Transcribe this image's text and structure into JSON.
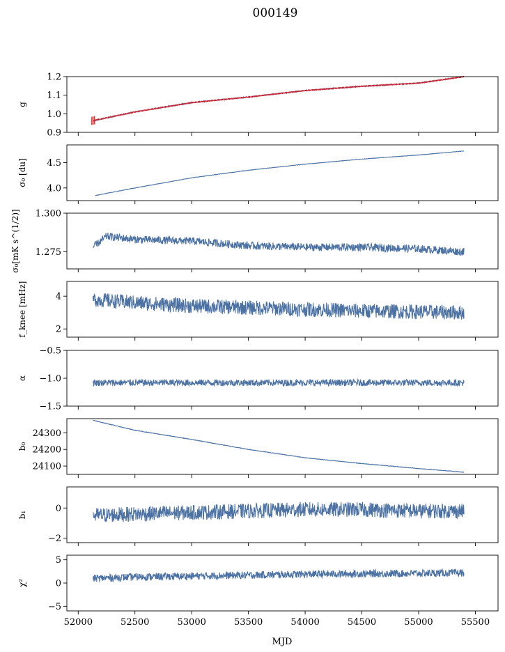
{
  "title": "000149",
  "xlabel": "MJD",
  "x_ticks": [
    "52000",
    "52500",
    "53000",
    "53500",
    "54000",
    "54500",
    "55000",
    "55500"
  ],
  "colors": {
    "series": "#4c72a4",
    "highlight": "#ff0000"
  },
  "chart_data": [
    {
      "type": "line",
      "ylabel": "g",
      "ylim": [
        0.9,
        1.2
      ],
      "yticks": [
        {
          "value": 0.9,
          "label": "0.9"
        },
        {
          "value": 1.0,
          "label": "1.0"
        },
        {
          "value": 1.1,
          "label": "1.1"
        },
        {
          "value": 1.2,
          "label": "1.2"
        }
      ],
      "series": [
        {
          "x": [
            52130,
            52500,
            53000,
            53500,
            54000,
            54500,
            55000,
            55400
          ],
          "y": [
            0.962,
            1.01,
            1.06,
            1.09,
            1.125,
            1.148,
            1.165,
            1.2
          ],
          "noise": 0.003
        },
        {
          "x": [
            52120,
            52500,
            53000,
            53500,
            54000,
            54500,
            55000,
            55400
          ],
          "y": [
            0.962,
            1.01,
            1.06,
            1.09,
            1.125,
            1.148,
            1.165,
            1.2
          ],
          "color": "red",
          "errorbar": 0.02
        }
      ]
    },
    {
      "type": "line",
      "ylabel": "σ₀ [du]",
      "ylim": [
        3.75,
        4.85
      ],
      "yticks": [
        {
          "value": 4.0,
          "label": "4.0"
        },
        {
          "value": 4.5,
          "label": "4.5"
        }
      ],
      "series": [
        {
          "x": [
            52150,
            52500,
            53000,
            53500,
            54000,
            54500,
            55000,
            55400
          ],
          "y": [
            3.85,
            4.0,
            4.2,
            4.35,
            4.47,
            4.57,
            4.65,
            4.73
          ],
          "noise": 0.004
        }
      ]
    },
    {
      "type": "line",
      "ylabel": "σ₀[mK s^(1/2)]",
      "ylim": [
        1.264,
        1.3
      ],
      "yticks": [
        {
          "value": 1.275,
          "label": "1.275"
        },
        {
          "value": 1.3,
          "label": "1.300"
        }
      ],
      "series": [
        {
          "x": [
            52130,
            52250,
            52500,
            53000,
            53500,
            54000,
            54500,
            55000,
            55400
          ],
          "y": [
            1.278,
            1.285,
            1.283,
            1.282,
            1.279,
            1.278,
            1.278,
            1.277,
            1.275
          ],
          "noise": 0.0025
        }
      ]
    },
    {
      "type": "line",
      "ylabel": "f_knee [mHz]",
      "ylim": [
        1.5,
        4.9
      ],
      "yticks": [
        {
          "value": 2,
          "label": "2"
        },
        {
          "value": 4,
          "label": "4"
        }
      ],
      "series": [
        {
          "x": [
            52130,
            52500,
            53000,
            53500,
            54000,
            54500,
            55000,
            55400
          ],
          "y": [
            3.8,
            3.6,
            3.4,
            3.3,
            3.2,
            3.1,
            3.05,
            3.0
          ],
          "noise": 0.45
        }
      ]
    },
    {
      "type": "line",
      "ylabel": "α",
      "ylim": [
        -1.5,
        -0.5
      ],
      "yticks": [
        {
          "value": -1.5,
          "label": "−1.5"
        },
        {
          "value": -1.0,
          "label": "−1.0"
        },
        {
          "value": -0.5,
          "label": "−0.5"
        }
      ],
      "series": [
        {
          "x": [
            52130,
            55400
          ],
          "y": [
            -1.08,
            -1.08
          ],
          "noise": 0.06
        }
      ]
    },
    {
      "type": "line",
      "ylabel": "b₀",
      "ylim": [
        24050,
        24385
      ],
      "yticks": [
        {
          "value": 24100,
          "label": "24100"
        },
        {
          "value": 24200,
          "label": "24200"
        },
        {
          "value": 24300,
          "label": "24300"
        }
      ],
      "series": [
        {
          "x": [
            52130,
            52500,
            53000,
            53500,
            54000,
            54500,
            55000,
            55400
          ],
          "y": [
            24375,
            24315,
            24260,
            24200,
            24150,
            24115,
            24085,
            24063
          ],
          "noise": 1.5
        }
      ]
    },
    {
      "type": "line",
      "ylabel": "b₁",
      "ylim": [
        -2.3,
        1.4
      ],
      "yticks": [
        {
          "value": -2,
          "label": "−2"
        },
        {
          "value": 0,
          "label": "0"
        }
      ],
      "series": [
        {
          "x": [
            52130,
            52500,
            53000,
            53500,
            54000,
            54500,
            55000,
            55400
          ],
          "y": [
            -0.5,
            -0.4,
            -0.3,
            -0.2,
            -0.1,
            -0.1,
            -0.2,
            -0.2
          ],
          "noise": 0.5
        }
      ]
    },
    {
      "type": "line",
      "ylabel": "χ²",
      "ylim": [
        -6,
        6
      ],
      "yticks": [
        {
          "value": -5,
          "label": "−5"
        },
        {
          "value": 0,
          "label": "0"
        },
        {
          "value": 5,
          "label": "5"
        }
      ],
      "series": [
        {
          "x": [
            52130,
            52500,
            53000,
            53500,
            54000,
            54500,
            55000,
            55400
          ],
          "y": [
            1.0,
            1.3,
            1.5,
            1.7,
            1.9,
            2.0,
            2.1,
            2.2
          ],
          "noise": 0.8
        }
      ]
    }
  ]
}
